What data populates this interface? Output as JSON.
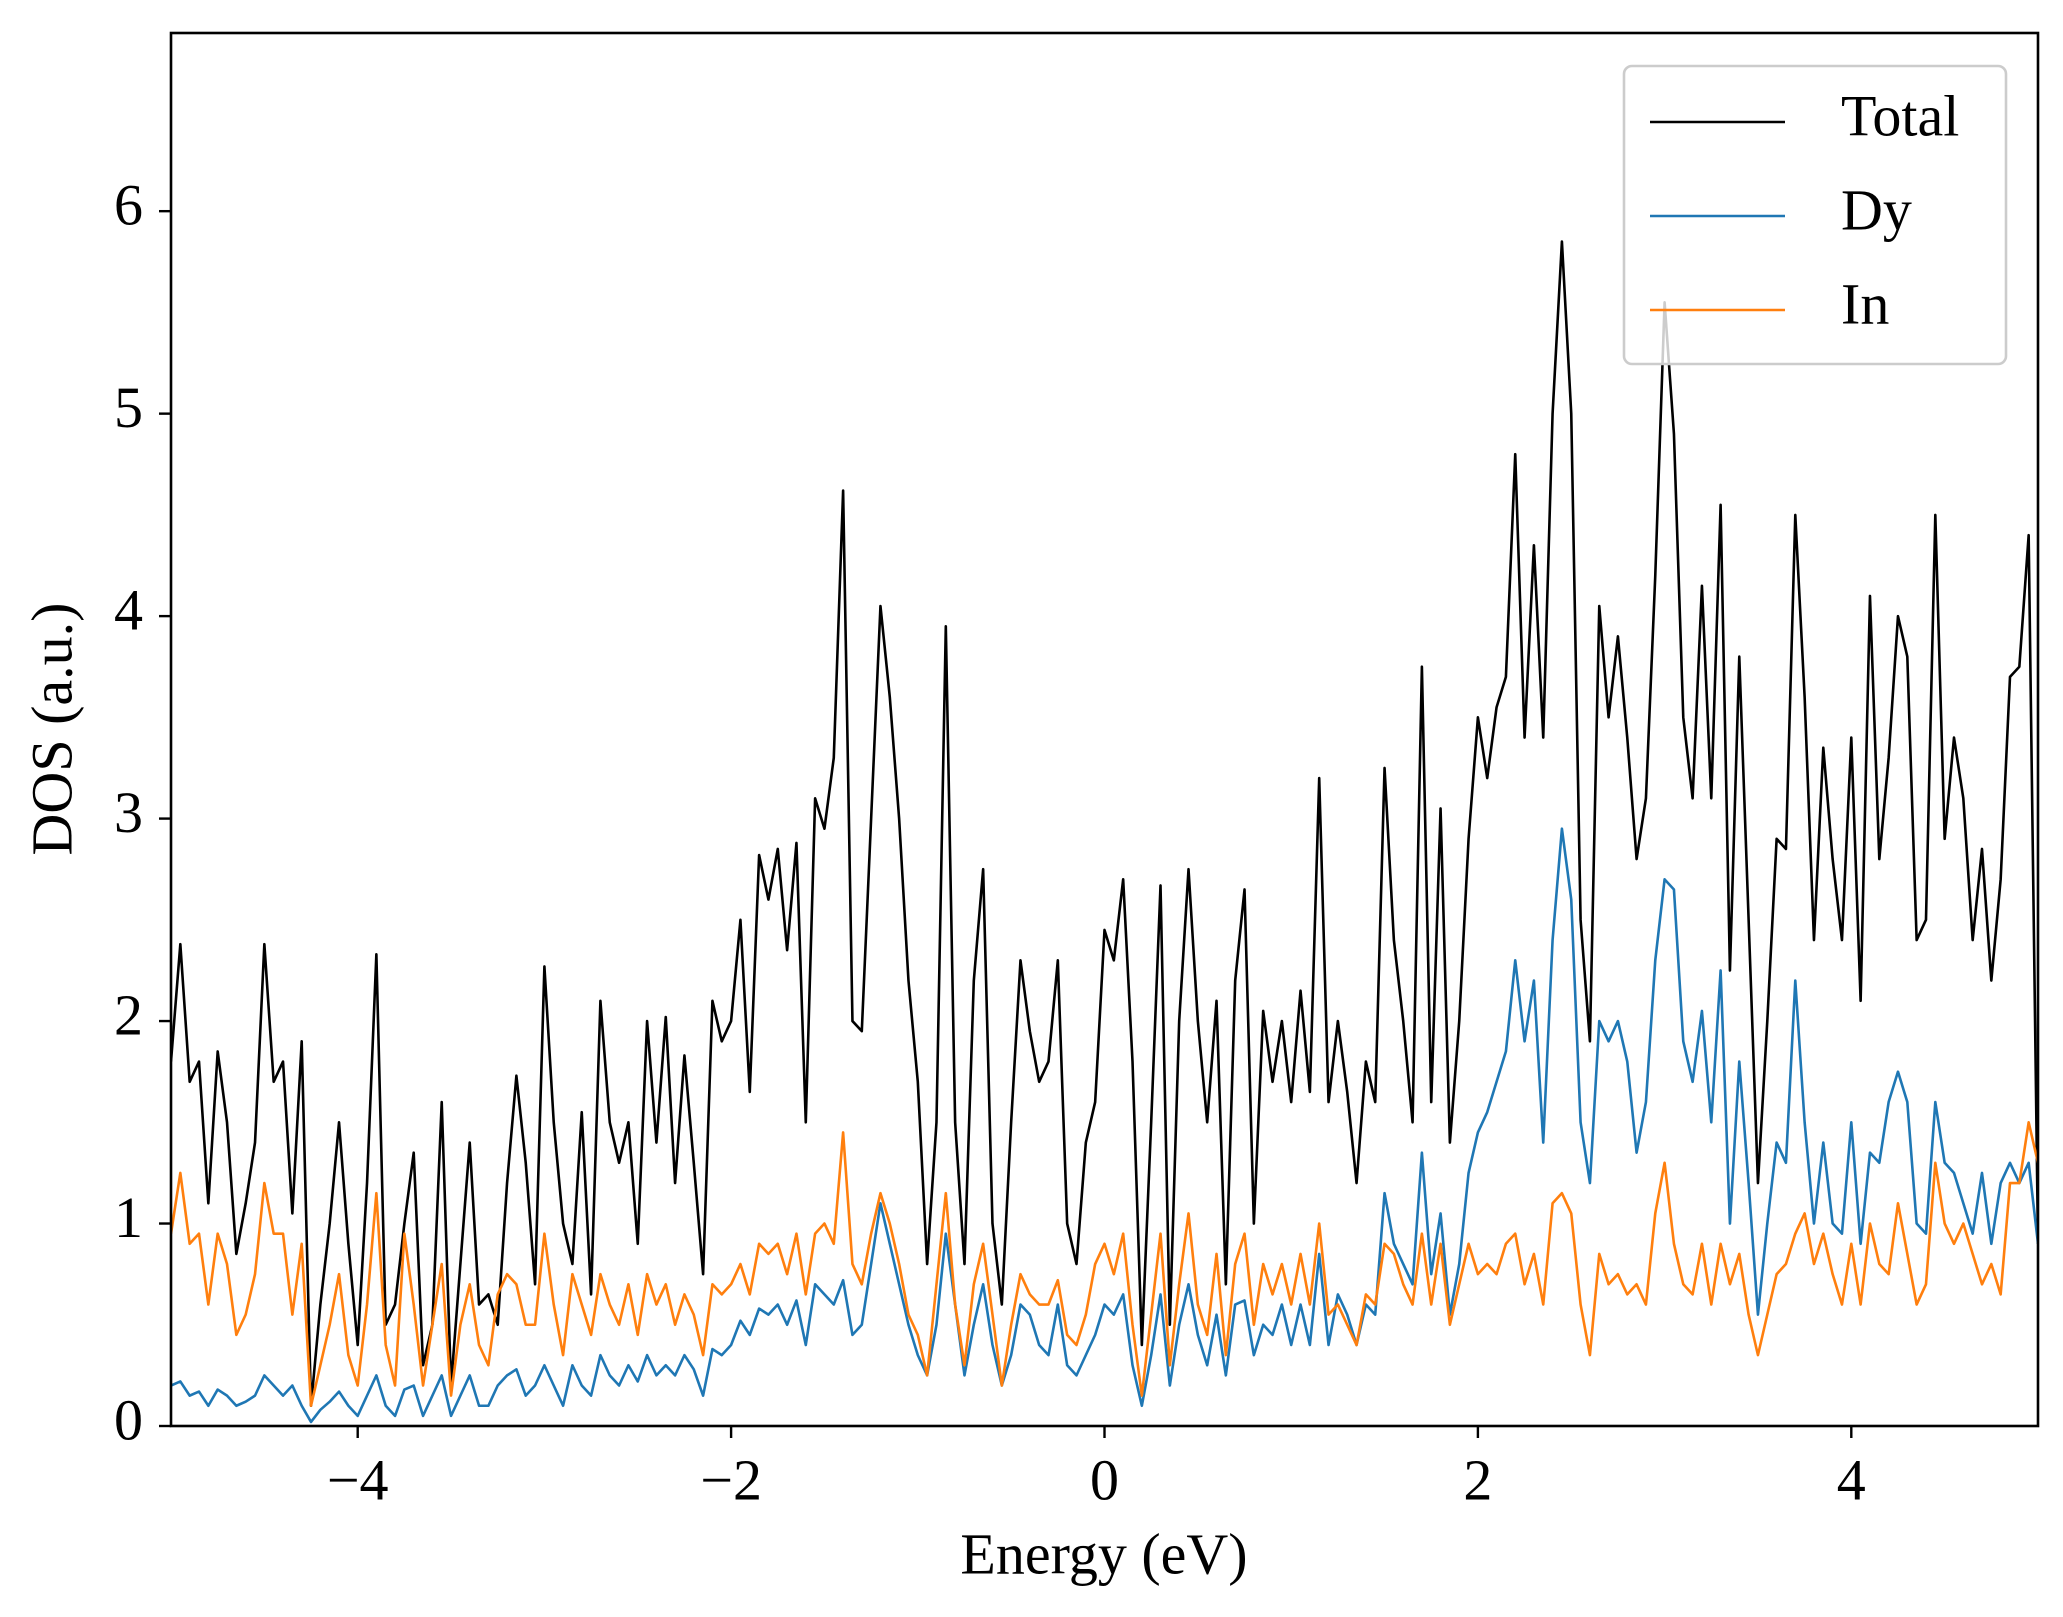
{
  "chart_data": {
    "type": "line",
    "xlabel": "Energy (eV)",
    "ylabel": "DOS (a.u.)",
    "xlim": [
      -5,
      5
    ],
    "ylim": [
      0,
      6.88
    ],
    "xticks": [
      {
        "value": -4,
        "label": "−4"
      },
      {
        "value": -2,
        "label": "−2"
      },
      0,
      2,
      4
    ],
    "yticks": [
      0,
      1,
      2,
      3,
      4,
      5,
      6
    ],
    "legend": "upper right",
    "x": [
      -5,
      -4.95,
      -4.9,
      -4.85,
      -4.8,
      -4.75,
      -4.7,
      -4.65,
      -4.6,
      -4.55,
      -4.5,
      -4.45,
      -4.4,
      -4.35,
      -4.3,
      -4.25,
      -4.2,
      -4.15,
      -4.1,
      -4.05,
      -4,
      -3.95,
      -3.9,
      -3.85,
      -3.8,
      -3.75,
      -3.7,
      -3.65,
      -3.6,
      -3.55,
      -3.5,
      -3.45,
      -3.4,
      -3.35,
      -3.3,
      -3.25,
      -3.2,
      -3.15,
      -3.1,
      -3.05,
      -3,
      -2.95,
      -2.9,
      -2.85,
      -2.8,
      -2.75,
      -2.7,
      -2.65,
      -2.6,
      -2.55,
      -2.5,
      -2.45,
      -2.4,
      -2.35,
      -2.3,
      -2.25,
      -2.2,
      -2.15,
      -2.1,
      -2.05,
      -2,
      -1.95,
      -1.9,
      -1.85,
      -1.8,
      -1.75,
      -1.7,
      -1.65,
      -1.6,
      -1.55,
      -1.5,
      -1.45,
      -1.4,
      -1.35,
      -1.3,
      -1.25,
      -1.2,
      -1.15,
      -1.1,
      -1.05,
      -1,
      -0.95,
      -0.9,
      -0.85,
      -0.8,
      -0.75,
      -0.7,
      -0.65,
      -0.6,
      -0.55,
      -0.5,
      -0.45,
      -0.4,
      -0.35,
      -0.3,
      -0.25,
      -0.2,
      -0.15,
      -0.1,
      -0.05,
      0,
      0.05,
      0.1,
      0.15,
      0.2,
      0.25,
      0.3,
      0.35,
      0.4,
      0.45,
      0.5,
      0.55,
      0.6,
      0.65,
      0.7,
      0.75,
      0.8,
      0.85,
      0.9,
      0.95,
      1,
      1.05,
      1.1,
      1.15,
      1.2,
      1.25,
      1.3,
      1.35,
      1.4,
      1.45,
      1.5,
      1.55,
      1.6,
      1.65,
      1.7,
      1.75,
      1.8,
      1.85,
      1.9,
      1.95,
      2,
      2.05,
      2.1,
      2.15,
      2.2,
      2.25,
      2.3,
      2.35,
      2.4,
      2.45,
      2.5,
      2.55,
      2.6,
      2.65,
      2.7,
      2.75,
      2.8,
      2.85,
      2.9,
      2.95,
      3,
      3.05,
      3.1,
      3.15,
      3.2,
      3.25,
      3.3,
      3.35,
      3.4,
      3.45,
      3.5,
      3.55,
      3.6,
      3.65,
      3.7,
      3.75,
      3.8,
      3.85,
      3.9,
      3.95,
      4,
      4.05,
      4.1,
      4.15,
      4.2,
      4.25,
      4.3,
      4.35,
      4.4,
      4.45,
      4.5,
      4.55,
      4.6,
      4.65,
      4.7,
      4.75,
      4.8,
      4.85,
      4.9,
      4.95,
      5
    ],
    "series": [
      {
        "name": "Total",
        "color": "#000000",
        "values": [
          1.8,
          2.38,
          1.7,
          1.8,
          1.1,
          1.85,
          1.5,
          0.85,
          1.1,
          1.4,
          2.38,
          1.7,
          1.8,
          1.05,
          1.9,
          0.1,
          0.6,
          1.0,
          1.5,
          0.9,
          0.4,
          1.2,
          2.33,
          0.5,
          0.6,
          1.0,
          1.35,
          0.3,
          0.5,
          1.6,
          0.2,
          0.8,
          1.4,
          0.6,
          0.65,
          0.5,
          1.2,
          1.73,
          1.3,
          0.7,
          2.27,
          1.5,
          1.0,
          0.8,
          1.55,
          0.65,
          2.1,
          1.5,
          1.3,
          1.5,
          0.9,
          2.0,
          1.4,
          2.02,
          1.2,
          1.83,
          1.3,
          0.75,
          2.1,
          1.9,
          2.0,
          2.5,
          1.65,
          2.82,
          2.6,
          2.85,
          2.35,
          2.88,
          1.5,
          3.1,
          2.95,
          3.3,
          4.62,
          2.0,
          1.95,
          3.0,
          4.05,
          3.6,
          3.0,
          2.2,
          1.7,
          0.8,
          1.5,
          3.95,
          1.5,
          0.8,
          2.2,
          2.75,
          1.0,
          0.6,
          1.5,
          2.3,
          1.95,
          1.7,
          1.8,
          2.3,
          1.0,
          0.8,
          1.4,
          1.6,
          2.45,
          2.3,
          2.7,
          1.8,
          0.4,
          1.5,
          2.67,
          0.5,
          2.0,
          2.75,
          2.0,
          1.5,
          2.1,
          0.7,
          2.2,
          2.65,
          1.0,
          2.05,
          1.7,
          2.0,
          1.6,
          2.15,
          1.65,
          3.2,
          1.6,
          2.0,
          1.65,
          1.2,
          1.8,
          1.6,
          3.25,
          2.4,
          2.0,
          1.5,
          3.75,
          1.6,
          3.05,
          1.4,
          2.0,
          2.9,
          3.5,
          3.2,
          3.55,
          3.7,
          4.8,
          3.4,
          4.35,
          3.4,
          5.0,
          5.85,
          5.0,
          2.5,
          1.9,
          4.05,
          3.5,
          3.9,
          3.4,
          2.8,
          3.1,
          4.2,
          5.55,
          4.9,
          3.5,
          3.1,
          4.15,
          3.1,
          4.55,
          2.25,
          3.8,
          2.5,
          1.2,
          2.0,
          2.9,
          2.85,
          4.5,
          3.6,
          2.4,
          3.35,
          2.8,
          2.4,
          3.4,
          2.1,
          4.1,
          2.8,
          3.3,
          4.0,
          3.8,
          2.4,
          2.5,
          4.5,
          2.9,
          3.4,
          3.1,
          2.4,
          2.85,
          2.2,
          2.7,
          3.7,
          3.75,
          4.4,
          0.9
        ]
      },
      {
        "name": "Dy",
        "color": "#1f77b4",
        "values": [
          0.2,
          0.22,
          0.15,
          0.17,
          0.1,
          0.18,
          0.15,
          0.1,
          0.12,
          0.15,
          0.25,
          0.2,
          0.15,
          0.2,
          0.1,
          0.02,
          0.08,
          0.12,
          0.17,
          0.1,
          0.05,
          0.15,
          0.25,
          0.1,
          0.05,
          0.18,
          0.2,
          0.05,
          0.15,
          0.25,
          0.05,
          0.15,
          0.25,
          0.1,
          0.1,
          0.2,
          0.25,
          0.28,
          0.15,
          0.2,
          0.3,
          0.2,
          0.1,
          0.3,
          0.2,
          0.15,
          0.35,
          0.25,
          0.2,
          0.3,
          0.22,
          0.35,
          0.25,
          0.3,
          0.25,
          0.35,
          0.28,
          0.15,
          0.38,
          0.35,
          0.4,
          0.52,
          0.45,
          0.58,
          0.55,
          0.6,
          0.5,
          0.62,
          0.4,
          0.7,
          0.65,
          0.6,
          0.72,
          0.45,
          0.5,
          0.8,
          1.1,
          0.9,
          0.7,
          0.5,
          0.35,
          0.25,
          0.5,
          0.95,
          0.6,
          0.25,
          0.5,
          0.7,
          0.4,
          0.2,
          0.35,
          0.6,
          0.55,
          0.4,
          0.35,
          0.6,
          0.3,
          0.25,
          0.35,
          0.45,
          0.6,
          0.55,
          0.65,
          0.3,
          0.1,
          0.35,
          0.65,
          0.2,
          0.5,
          0.7,
          0.45,
          0.3,
          0.55,
          0.25,
          0.6,
          0.62,
          0.35,
          0.5,
          0.45,
          0.6,
          0.4,
          0.6,
          0.4,
          0.85,
          0.4,
          0.65,
          0.55,
          0.4,
          0.6,
          0.55,
          1.15,
          0.9,
          0.8,
          0.7,
          1.35,
          0.75,
          1.05,
          0.55,
          0.8,
          1.25,
          1.45,
          1.55,
          1.7,
          1.85,
          2.3,
          1.9,
          2.2,
          1.4,
          2.4,
          2.95,
          2.6,
          1.5,
          1.2,
          2.0,
          1.9,
          2.0,
          1.8,
          1.35,
          1.6,
          2.3,
          2.7,
          2.65,
          1.9,
          1.7,
          2.05,
          1.5,
          2.25,
          1.0,
          1.8,
          1.2,
          0.55,
          1.0,
          1.4,
          1.3,
          2.2,
          1.5,
          1.0,
          1.4,
          1.0,
          0.95,
          1.5,
          0.9,
          1.35,
          1.3,
          1.6,
          1.75,
          1.6,
          1.0,
          0.95,
          1.6,
          1.3,
          1.25,
          1.1,
          0.95,
          1.25,
          0.9,
          1.2,
          1.3,
          1.2,
          1.3,
          0.9
        ]
      },
      {
        "name": "In",
        "color": "#ff7f0e",
        "values": [
          0.95,
          1.25,
          0.9,
          0.95,
          0.6,
          0.95,
          0.8,
          0.45,
          0.55,
          0.75,
          1.2,
          0.95,
          0.95,
          0.55,
          0.9,
          0.1,
          0.3,
          0.5,
          0.75,
          0.35,
          0.2,
          0.6,
          1.15,
          0.4,
          0.2,
          0.95,
          0.6,
          0.2,
          0.5,
          0.8,
          0.15,
          0.5,
          0.7,
          0.4,
          0.3,
          0.65,
          0.75,
          0.7,
          0.5,
          0.5,
          0.95,
          0.6,
          0.35,
          0.75,
          0.6,
          0.45,
          0.75,
          0.6,
          0.5,
          0.7,
          0.45,
          0.75,
          0.6,
          0.7,
          0.5,
          0.65,
          0.55,
          0.35,
          0.7,
          0.65,
          0.7,
          0.8,
          0.65,
          0.9,
          0.85,
          0.9,
          0.75,
          0.95,
          0.65,
          0.95,
          1.0,
          0.9,
          1.45,
          0.8,
          0.7,
          0.95,
          1.15,
          1.0,
          0.8,
          0.55,
          0.45,
          0.25,
          0.7,
          1.15,
          0.6,
          0.3,
          0.7,
          0.9,
          0.55,
          0.2,
          0.5,
          0.75,
          0.65,
          0.6,
          0.6,
          0.72,
          0.45,
          0.4,
          0.55,
          0.8,
          0.9,
          0.75,
          0.95,
          0.5,
          0.15,
          0.55,
          0.95,
          0.3,
          0.7,
          1.05,
          0.6,
          0.45,
          0.85,
          0.35,
          0.8,
          0.95,
          0.5,
          0.8,
          0.65,
          0.8,
          0.6,
          0.85,
          0.6,
          1.0,
          0.55,
          0.6,
          0.5,
          0.4,
          0.65,
          0.6,
          0.9,
          0.85,
          0.7,
          0.6,
          0.95,
          0.6,
          0.9,
          0.5,
          0.7,
          0.9,
          0.75,
          0.8,
          0.75,
          0.9,
          0.95,
          0.7,
          0.85,
          0.6,
          1.1,
          1.15,
          1.05,
          0.6,
          0.35,
          0.85,
          0.7,
          0.75,
          0.65,
          0.7,
          0.6,
          1.05,
          1.3,
          0.9,
          0.7,
          0.65,
          0.9,
          0.6,
          0.9,
          0.7,
          0.85,
          0.55,
          0.35,
          0.55,
          0.75,
          0.8,
          0.95,
          1.05,
          0.8,
          0.95,
          0.75,
          0.6,
          0.9,
          0.6,
          1.0,
          0.8,
          0.75,
          1.1,
          0.85,
          0.6,
          0.7,
          1.3,
          1.0,
          0.9,
          1.0,
          0.85,
          0.7,
          0.8,
          0.65,
          1.2,
          1.2,
          1.5,
          1.3
        ]
      }
    ]
  }
}
